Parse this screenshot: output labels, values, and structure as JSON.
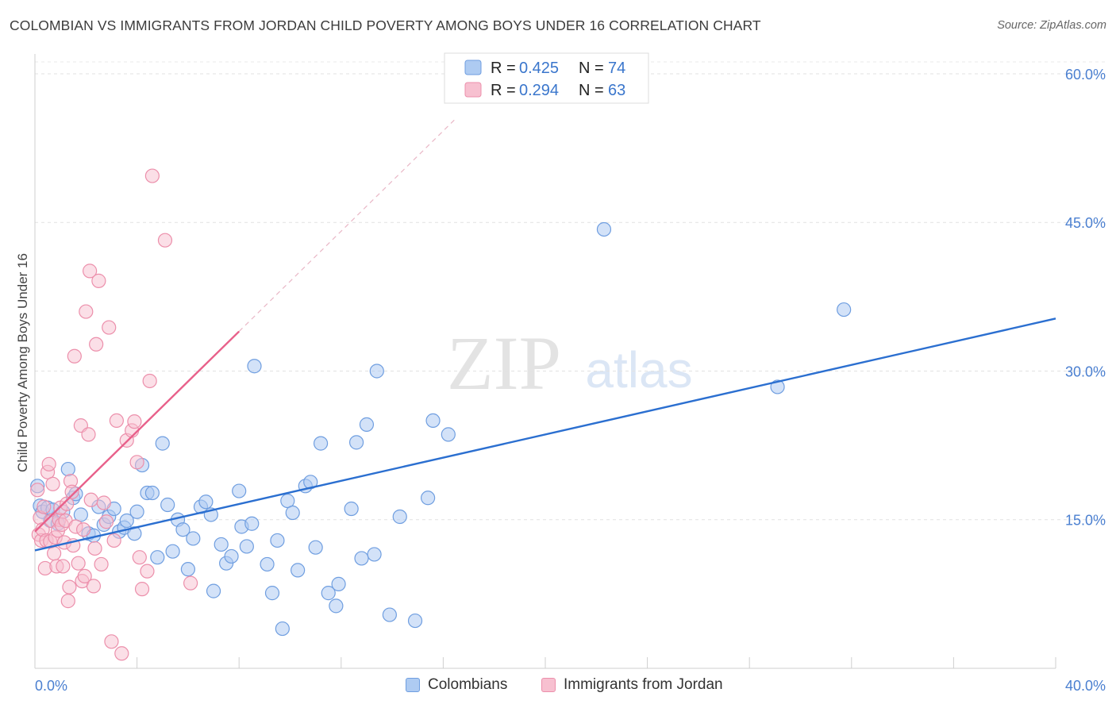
{
  "header": {
    "title": "COLOMBIAN VS IMMIGRANTS FROM JORDAN CHILD POVERTY AMONG BOYS UNDER 16 CORRELATION CHART",
    "source": "Source: ZipAtlas.com"
  },
  "watermark": {
    "zip": "ZIP",
    "atlas": "atlas"
  },
  "chart_data": {
    "type": "scatter",
    "title": "COLOMBIAN VS IMMIGRANTS FROM JORDAN CHILD POVERTY AMONG BOYS UNDER 16 CORRELATION CHART",
    "xlabel": "",
    "ylabel": "Child Poverty Among Boys Under 16",
    "xlim": [
      0,
      40
    ],
    "ylim": [
      0,
      62
    ],
    "x_tick_labels": [
      "0.0%",
      "40.0%"
    ],
    "y_ticks": [
      15,
      30,
      45,
      60
    ],
    "y_tick_labels": [
      "15.0%",
      "30.0%",
      "45.0%",
      "60.0%"
    ],
    "grid": true,
    "legend_position": "top-center",
    "stats_legend": [
      {
        "r_label": "R = ",
        "r_value": "0.425",
        "n_label": "N = ",
        "n_value": "74"
      },
      {
        "r_label": "R = ",
        "r_value": "0.294",
        "n_label": "N = ",
        "n_value": "63"
      }
    ],
    "colors": {
      "colombians_fill": "#aecbf2",
      "colombians_stroke": "#6f9ee0",
      "colombians_line": "#2b6fd0",
      "jordan_fill": "#f7c0d0",
      "jordan_stroke": "#ec8fab",
      "jordan_line": "#e8608a",
      "value_text": "#3a76cc",
      "tick_text": "#4a7fd0"
    },
    "series": [
      {
        "name": "Colombians",
        "trend": {
          "x": [
            0,
            40
          ],
          "y": [
            11.9,
            35.3
          ]
        },
        "points": [
          {
            "x": 0.1,
            "y": 18.4
          },
          {
            "x": 0.2,
            "y": 16.4
          },
          {
            "x": 0.3,
            "y": 15.8
          },
          {
            "x": 0.5,
            "y": 16.2
          },
          {
            "x": 0.6,
            "y": 14.9
          },
          {
            "x": 0.7,
            "y": 16.0
          },
          {
            "x": 0.9,
            "y": 14.6
          },
          {
            "x": 1.1,
            "y": 15.8
          },
          {
            "x": 1.3,
            "y": 20.1
          },
          {
            "x": 1.5,
            "y": 17.2
          },
          {
            "x": 1.6,
            "y": 17.6
          },
          {
            "x": 1.8,
            "y": 15.5
          },
          {
            "x": 2.1,
            "y": 13.6
          },
          {
            "x": 2.3,
            "y": 13.4
          },
          {
            "x": 2.5,
            "y": 16.3
          },
          {
            "x": 2.7,
            "y": 14.5
          },
          {
            "x": 2.9,
            "y": 15.3
          },
          {
            "x": 3.1,
            "y": 16.1
          },
          {
            "x": 3.3,
            "y": 13.8
          },
          {
            "x": 3.5,
            "y": 14.2
          },
          {
            "x": 3.6,
            "y": 14.9
          },
          {
            "x": 3.9,
            "y": 13.6
          },
          {
            "x": 4.0,
            "y": 15.8
          },
          {
            "x": 4.2,
            "y": 20.5
          },
          {
            "x": 4.4,
            "y": 17.7
          },
          {
            "x": 4.6,
            "y": 17.7
          },
          {
            "x": 4.8,
            "y": 11.2
          },
          {
            "x": 5.0,
            "y": 22.7
          },
          {
            "x": 5.2,
            "y": 16.5
          },
          {
            "x": 5.4,
            "y": 11.8
          },
          {
            "x": 5.6,
            "y": 15.0
          },
          {
            "x": 5.8,
            "y": 14.0
          },
          {
            "x": 6.0,
            "y": 10.0
          },
          {
            "x": 6.2,
            "y": 13.1
          },
          {
            "x": 6.5,
            "y": 16.3
          },
          {
            "x": 6.7,
            "y": 16.8
          },
          {
            "x": 6.9,
            "y": 15.5
          },
          {
            "x": 7.0,
            "y": 7.8
          },
          {
            "x": 7.3,
            "y": 12.5
          },
          {
            "x": 7.5,
            "y": 10.6
          },
          {
            "x": 7.7,
            "y": 11.3
          },
          {
            "x": 8.0,
            "y": 17.9
          },
          {
            "x": 8.1,
            "y": 14.3
          },
          {
            "x": 8.3,
            "y": 12.3
          },
          {
            "x": 8.5,
            "y": 14.6
          },
          {
            "x": 8.6,
            "y": 30.5
          },
          {
            "x": 9.1,
            "y": 10.5
          },
          {
            "x": 9.3,
            "y": 7.6
          },
          {
            "x": 9.5,
            "y": 12.9
          },
          {
            "x": 9.7,
            "y": 4.0
          },
          {
            "x": 9.9,
            "y": 16.9
          },
          {
            "x": 10.1,
            "y": 15.7
          },
          {
            "x": 10.3,
            "y": 9.9
          },
          {
            "x": 10.6,
            "y": 18.4
          },
          {
            "x": 10.8,
            "y": 18.8
          },
          {
            "x": 11.0,
            "y": 12.2
          },
          {
            "x": 11.2,
            "y": 22.7
          },
          {
            "x": 11.5,
            "y": 7.6
          },
          {
            "x": 11.8,
            "y": 6.3
          },
          {
            "x": 11.9,
            "y": 8.5
          },
          {
            "x": 12.4,
            "y": 16.1
          },
          {
            "x": 12.6,
            "y": 22.8
          },
          {
            "x": 12.8,
            "y": 11.1
          },
          {
            "x": 13.0,
            "y": 24.6
          },
          {
            "x": 13.3,
            "y": 11.5
          },
          {
            "x": 13.4,
            "y": 30.0
          },
          {
            "x": 13.9,
            "y": 5.4
          },
          {
            "x": 14.3,
            "y": 15.3
          },
          {
            "x": 14.9,
            "y": 4.8
          },
          {
            "x": 15.4,
            "y": 17.2
          },
          {
            "x": 15.6,
            "y": 25.0
          },
          {
            "x": 16.2,
            "y": 23.6
          },
          {
            "x": 22.3,
            "y": 44.3
          },
          {
            "x": 29.1,
            "y": 28.4
          },
          {
            "x": 31.7,
            "y": 36.2
          }
        ]
      },
      {
        "name": "Immigrants from Jordan",
        "trend": {
          "x": [
            0,
            8
          ],
          "y": [
            13.8,
            34.0
          ]
        },
        "trend_ext": {
          "x": [
            8,
            16.5
          ],
          "y": [
            34.0,
            55.5
          ]
        },
        "points": [
          {
            "x": 0.1,
            "y": 18.0
          },
          {
            "x": 0.15,
            "y": 13.5
          },
          {
            "x": 0.2,
            "y": 15.2
          },
          {
            "x": 0.25,
            "y": 12.9
          },
          {
            "x": 0.3,
            "y": 14.0
          },
          {
            "x": 0.35,
            "y": 16.3
          },
          {
            "x": 0.4,
            "y": 10.1
          },
          {
            "x": 0.45,
            "y": 12.9
          },
          {
            "x": 0.5,
            "y": 19.8
          },
          {
            "x": 0.55,
            "y": 20.6
          },
          {
            "x": 0.6,
            "y": 12.8
          },
          {
            "x": 0.65,
            "y": 14.9
          },
          {
            "x": 0.7,
            "y": 18.6
          },
          {
            "x": 0.75,
            "y": 11.6
          },
          {
            "x": 0.8,
            "y": 13.2
          },
          {
            "x": 0.85,
            "y": 10.3
          },
          {
            "x": 0.9,
            "y": 13.9
          },
          {
            "x": 0.95,
            "y": 15.0
          },
          {
            "x": 1.0,
            "y": 16.2
          },
          {
            "x": 1.05,
            "y": 14.5
          },
          {
            "x": 1.1,
            "y": 10.3
          },
          {
            "x": 1.15,
            "y": 12.7
          },
          {
            "x": 1.2,
            "y": 14.9
          },
          {
            "x": 1.25,
            "y": 16.6
          },
          {
            "x": 1.3,
            "y": 6.8
          },
          {
            "x": 1.35,
            "y": 8.2
          },
          {
            "x": 1.4,
            "y": 18.9
          },
          {
            "x": 1.45,
            "y": 17.8
          },
          {
            "x": 1.5,
            "y": 12.4
          },
          {
            "x": 1.55,
            "y": 31.5
          },
          {
            "x": 1.6,
            "y": 14.3
          },
          {
            "x": 1.7,
            "y": 10.6
          },
          {
            "x": 1.8,
            "y": 24.5
          },
          {
            "x": 1.85,
            "y": 8.8
          },
          {
            "x": 1.9,
            "y": 14.0
          },
          {
            "x": 1.95,
            "y": 9.3
          },
          {
            "x": 2.0,
            "y": 36.0
          },
          {
            "x": 2.1,
            "y": 23.6
          },
          {
            "x": 2.15,
            "y": 40.1
          },
          {
            "x": 2.2,
            "y": 17.0
          },
          {
            "x": 2.3,
            "y": 8.3
          },
          {
            "x": 2.35,
            "y": 12.1
          },
          {
            "x": 2.4,
            "y": 32.7
          },
          {
            "x": 2.5,
            "y": 39.1
          },
          {
            "x": 2.6,
            "y": 10.5
          },
          {
            "x": 2.7,
            "y": 16.7
          },
          {
            "x": 2.8,
            "y": 14.8
          },
          {
            "x": 2.9,
            "y": 34.4
          },
          {
            "x": 3.0,
            "y": 2.7
          },
          {
            "x": 3.1,
            "y": 12.9
          },
          {
            "x": 3.2,
            "y": 25.0
          },
          {
            "x": 3.4,
            "y": 1.5
          },
          {
            "x": 3.6,
            "y": 23.0
          },
          {
            "x": 3.8,
            "y": 24.0
          },
          {
            "x": 3.9,
            "y": 24.9
          },
          {
            "x": 4.0,
            "y": 20.8
          },
          {
            "x": 4.1,
            "y": 11.2
          },
          {
            "x": 4.2,
            "y": 8.0
          },
          {
            "x": 4.4,
            "y": 9.8
          },
          {
            "x": 4.5,
            "y": 29.0
          },
          {
            "x": 4.6,
            "y": 49.7
          },
          {
            "x": 5.1,
            "y": 43.2
          },
          {
            "x": 6.1,
            "y": 8.6
          }
        ]
      }
    ]
  },
  "legend_bottom": {
    "items": [
      {
        "label": "Colombians"
      },
      {
        "label": "Immigrants from Jordan"
      }
    ]
  }
}
